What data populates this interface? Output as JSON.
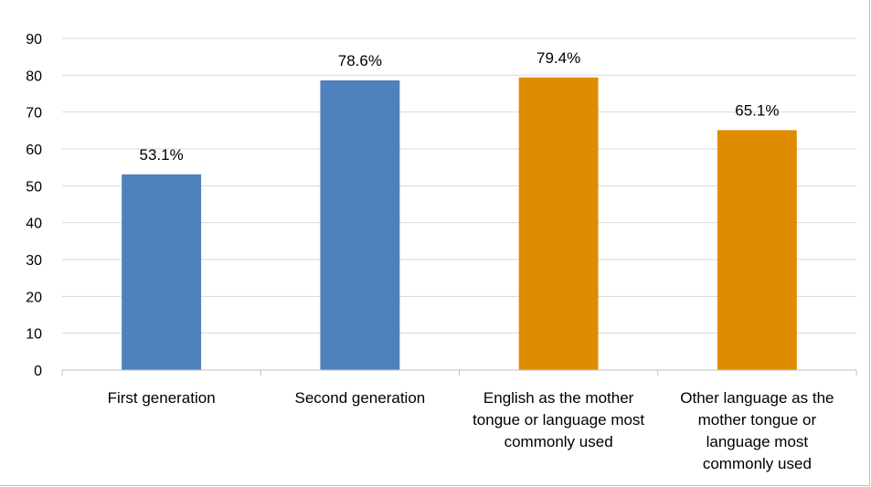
{
  "chart_data": {
    "type": "bar",
    "title": "",
    "xlabel": "",
    "ylabel": "",
    "ylim": [
      0,
      90
    ],
    "yticks": [
      0,
      10,
      20,
      30,
      40,
      50,
      60,
      70,
      80,
      90
    ],
    "grid": true,
    "legend": "none",
    "categories": [
      "First generation",
      "Second generation",
      "English as the mother tongue or language most commonly used",
      "Other language as the mother tongue or language most commonly used"
    ],
    "category_lines": [
      [
        "First generation"
      ],
      [
        "Second generation"
      ],
      [
        "English as the mother",
        "tongue or language most",
        "commonly used"
      ],
      [
        "Other language as the",
        "mother tongue or",
        "language most",
        "commonly used"
      ]
    ],
    "values": [
      53.1,
      78.6,
      79.4,
      65.1
    ],
    "data_labels": [
      "53.1%",
      "78.6%",
      "79.4%",
      "65.1%"
    ],
    "colors": [
      "#4f81bd",
      "#4f81bd",
      "#e08c00",
      "#e08c00"
    ],
    "gridline_color": "#d9d9d9",
    "axis_color": "#bfbfbf"
  }
}
